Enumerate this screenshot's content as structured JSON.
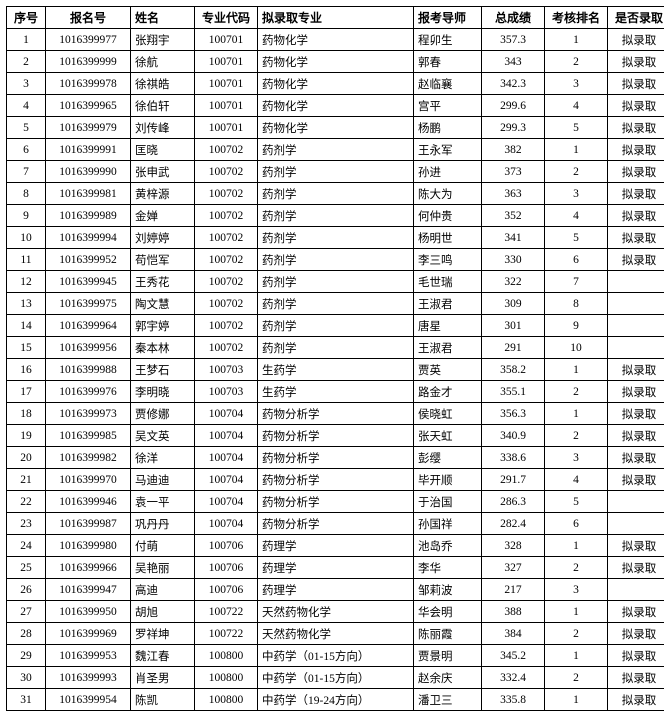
{
  "table": {
    "columns": [
      {
        "key": "seq",
        "label": "序号"
      },
      {
        "key": "reg",
        "label": "报名号"
      },
      {
        "key": "name",
        "label": "姓名"
      },
      {
        "key": "code",
        "label": "专业代码"
      },
      {
        "key": "major",
        "label": "拟录取专业"
      },
      {
        "key": "sup",
        "label": "报考导师"
      },
      {
        "key": "score",
        "label": "总成绩"
      },
      {
        "key": "rank",
        "label": "考核排名"
      },
      {
        "key": "admit",
        "label": "是否录取"
      }
    ],
    "rows": [
      {
        "seq": "1",
        "reg": "1016399977",
        "name": "张翔宇",
        "code": "100701",
        "major": "药物化学",
        "sup": "程卯生",
        "score": "357.3",
        "rank": "1",
        "admit": "拟录取"
      },
      {
        "seq": "2",
        "reg": "1016399999",
        "name": "徐航",
        "code": "100701",
        "major": "药物化学",
        "sup": "郭春",
        "score": "343",
        "rank": "2",
        "admit": "拟录取"
      },
      {
        "seq": "3",
        "reg": "1016399978",
        "name": "徐祺皓",
        "code": "100701",
        "major": "药物化学",
        "sup": "赵临襄",
        "score": "342.3",
        "rank": "3",
        "admit": "拟录取"
      },
      {
        "seq": "4",
        "reg": "1016399965",
        "name": "徐伯轩",
        "code": "100701",
        "major": "药物化学",
        "sup": "宫平",
        "score": "299.6",
        "rank": "4",
        "admit": "拟录取"
      },
      {
        "seq": "5",
        "reg": "1016399979",
        "name": "刘传峰",
        "code": "100701",
        "major": "药物化学",
        "sup": "杨鹏",
        "score": "299.3",
        "rank": "5",
        "admit": "拟录取"
      },
      {
        "seq": "6",
        "reg": "1016399991",
        "name": "匡晓",
        "code": "100702",
        "major": "药剂学",
        "sup": "王永军",
        "score": "382",
        "rank": "1",
        "admit": "拟录取"
      },
      {
        "seq": "7",
        "reg": "1016399990",
        "name": "张申武",
        "code": "100702",
        "major": "药剂学",
        "sup": "孙进",
        "score": "373",
        "rank": "2",
        "admit": "拟录取"
      },
      {
        "seq": "8",
        "reg": "1016399981",
        "name": "黄梓源",
        "code": "100702",
        "major": "药剂学",
        "sup": "陈大为",
        "score": "363",
        "rank": "3",
        "admit": "拟录取"
      },
      {
        "seq": "9",
        "reg": "1016399989",
        "name": "金婵",
        "code": "100702",
        "major": "药剂学",
        "sup": "何仲贵",
        "score": "352",
        "rank": "4",
        "admit": "拟录取"
      },
      {
        "seq": "10",
        "reg": "1016399994",
        "name": "刘婷婷",
        "code": "100702",
        "major": "药剂学",
        "sup": "杨明世",
        "score": "341",
        "rank": "5",
        "admit": "拟录取"
      },
      {
        "seq": "11",
        "reg": "1016399952",
        "name": "苟恺军",
        "code": "100702",
        "major": "药剂学",
        "sup": "李三鸣",
        "score": "330",
        "rank": "6",
        "admit": "拟录取"
      },
      {
        "seq": "12",
        "reg": "1016399945",
        "name": "王秀花",
        "code": "100702",
        "major": "药剂学",
        "sup": "毛世瑞",
        "score": "322",
        "rank": "7",
        "admit": ""
      },
      {
        "seq": "13",
        "reg": "1016399975",
        "name": "陶文慧",
        "code": "100702",
        "major": "药剂学",
        "sup": "王淑君",
        "score": "309",
        "rank": "8",
        "admit": ""
      },
      {
        "seq": "14",
        "reg": "1016399964",
        "name": "郭宇婷",
        "code": "100702",
        "major": "药剂学",
        "sup": "唐星",
        "score": "301",
        "rank": "9",
        "admit": ""
      },
      {
        "seq": "15",
        "reg": "1016399956",
        "name": "秦本林",
        "code": "100702",
        "major": "药剂学",
        "sup": "王淑君",
        "score": "291",
        "rank": "10",
        "admit": ""
      },
      {
        "seq": "16",
        "reg": "1016399988",
        "name": "王梦石",
        "code": "100703",
        "major": "生药学",
        "sup": "贾英",
        "score": "358.2",
        "rank": "1",
        "admit": "拟录取"
      },
      {
        "seq": "17",
        "reg": "1016399976",
        "name": "李明晓",
        "code": "100703",
        "major": "生药学",
        "sup": "路金才",
        "score": "355.1",
        "rank": "2",
        "admit": "拟录取"
      },
      {
        "seq": "18",
        "reg": "1016399973",
        "name": "贾修娜",
        "code": "100704",
        "major": "药物分析学",
        "sup": "侯晓虹",
        "score": "356.3",
        "rank": "1",
        "admit": "拟录取"
      },
      {
        "seq": "19",
        "reg": "1016399985",
        "name": "吴文英",
        "code": "100704",
        "major": "药物分析学",
        "sup": "张天虹",
        "score": "340.9",
        "rank": "2",
        "admit": "拟录取"
      },
      {
        "seq": "20",
        "reg": "1016399982",
        "name": "徐洋",
        "code": "100704",
        "major": "药物分析学",
        "sup": "彭缨",
        "score": "338.6",
        "rank": "3",
        "admit": "拟录取"
      },
      {
        "seq": "21",
        "reg": "1016399970",
        "name": "马迪迪",
        "code": "100704",
        "major": "药物分析学",
        "sup": "毕开顺",
        "score": "291.7",
        "rank": "4",
        "admit": "拟录取"
      },
      {
        "seq": "22",
        "reg": "1016399946",
        "name": "袁一平",
        "code": "100704",
        "major": "药物分析学",
        "sup": "于治国",
        "score": "286.3",
        "rank": "5",
        "admit": ""
      },
      {
        "seq": "23",
        "reg": "1016399987",
        "name": "巩丹丹",
        "code": "100704",
        "major": "药物分析学",
        "sup": "孙国祥",
        "score": "282.4",
        "rank": "6",
        "admit": ""
      },
      {
        "seq": "24",
        "reg": "1016399980",
        "name": "付萌",
        "code": "100706",
        "major": "药理学",
        "sup": "池岛乔",
        "score": "328",
        "rank": "1",
        "admit": "拟录取"
      },
      {
        "seq": "25",
        "reg": "1016399966",
        "name": "吴艳丽",
        "code": "100706",
        "major": "药理学",
        "sup": "李华",
        "score": "327",
        "rank": "2",
        "admit": "拟录取"
      },
      {
        "seq": "26",
        "reg": "1016399947",
        "name": "高迪",
        "code": "100706",
        "major": "药理学",
        "sup": "邹莉波",
        "score": "217",
        "rank": "3",
        "admit": ""
      },
      {
        "seq": "27",
        "reg": "1016399950",
        "name": "胡旭",
        "code": "100722",
        "major": "天然药物化学",
        "sup": "华会明",
        "score": "388",
        "rank": "1",
        "admit": "拟录取"
      },
      {
        "seq": "28",
        "reg": "1016399969",
        "name": "罗祥坤",
        "code": "100722",
        "major": "天然药物化学",
        "sup": "陈丽霞",
        "score": "384",
        "rank": "2",
        "admit": "拟录取"
      },
      {
        "seq": "29",
        "reg": "1016399953",
        "name": "魏江春",
        "code": "100800",
        "major": "中药学（01-15方向）",
        "sup": "贾景明",
        "score": "345.2",
        "rank": "1",
        "admit": "拟录取"
      },
      {
        "seq": "30",
        "reg": "1016399993",
        "name": "肖圣男",
        "code": "100800",
        "major": "中药学（01-15方向）",
        "sup": "赵余庆",
        "score": "332.4",
        "rank": "2",
        "admit": "拟录取"
      },
      {
        "seq": "31",
        "reg": "1016399954",
        "name": "陈凯",
        "code": "100800",
        "major": "中药学（19-24方向）",
        "sup": "潘卫三",
        "score": "335.8",
        "rank": "1",
        "admit": "拟录取"
      }
    ]
  }
}
